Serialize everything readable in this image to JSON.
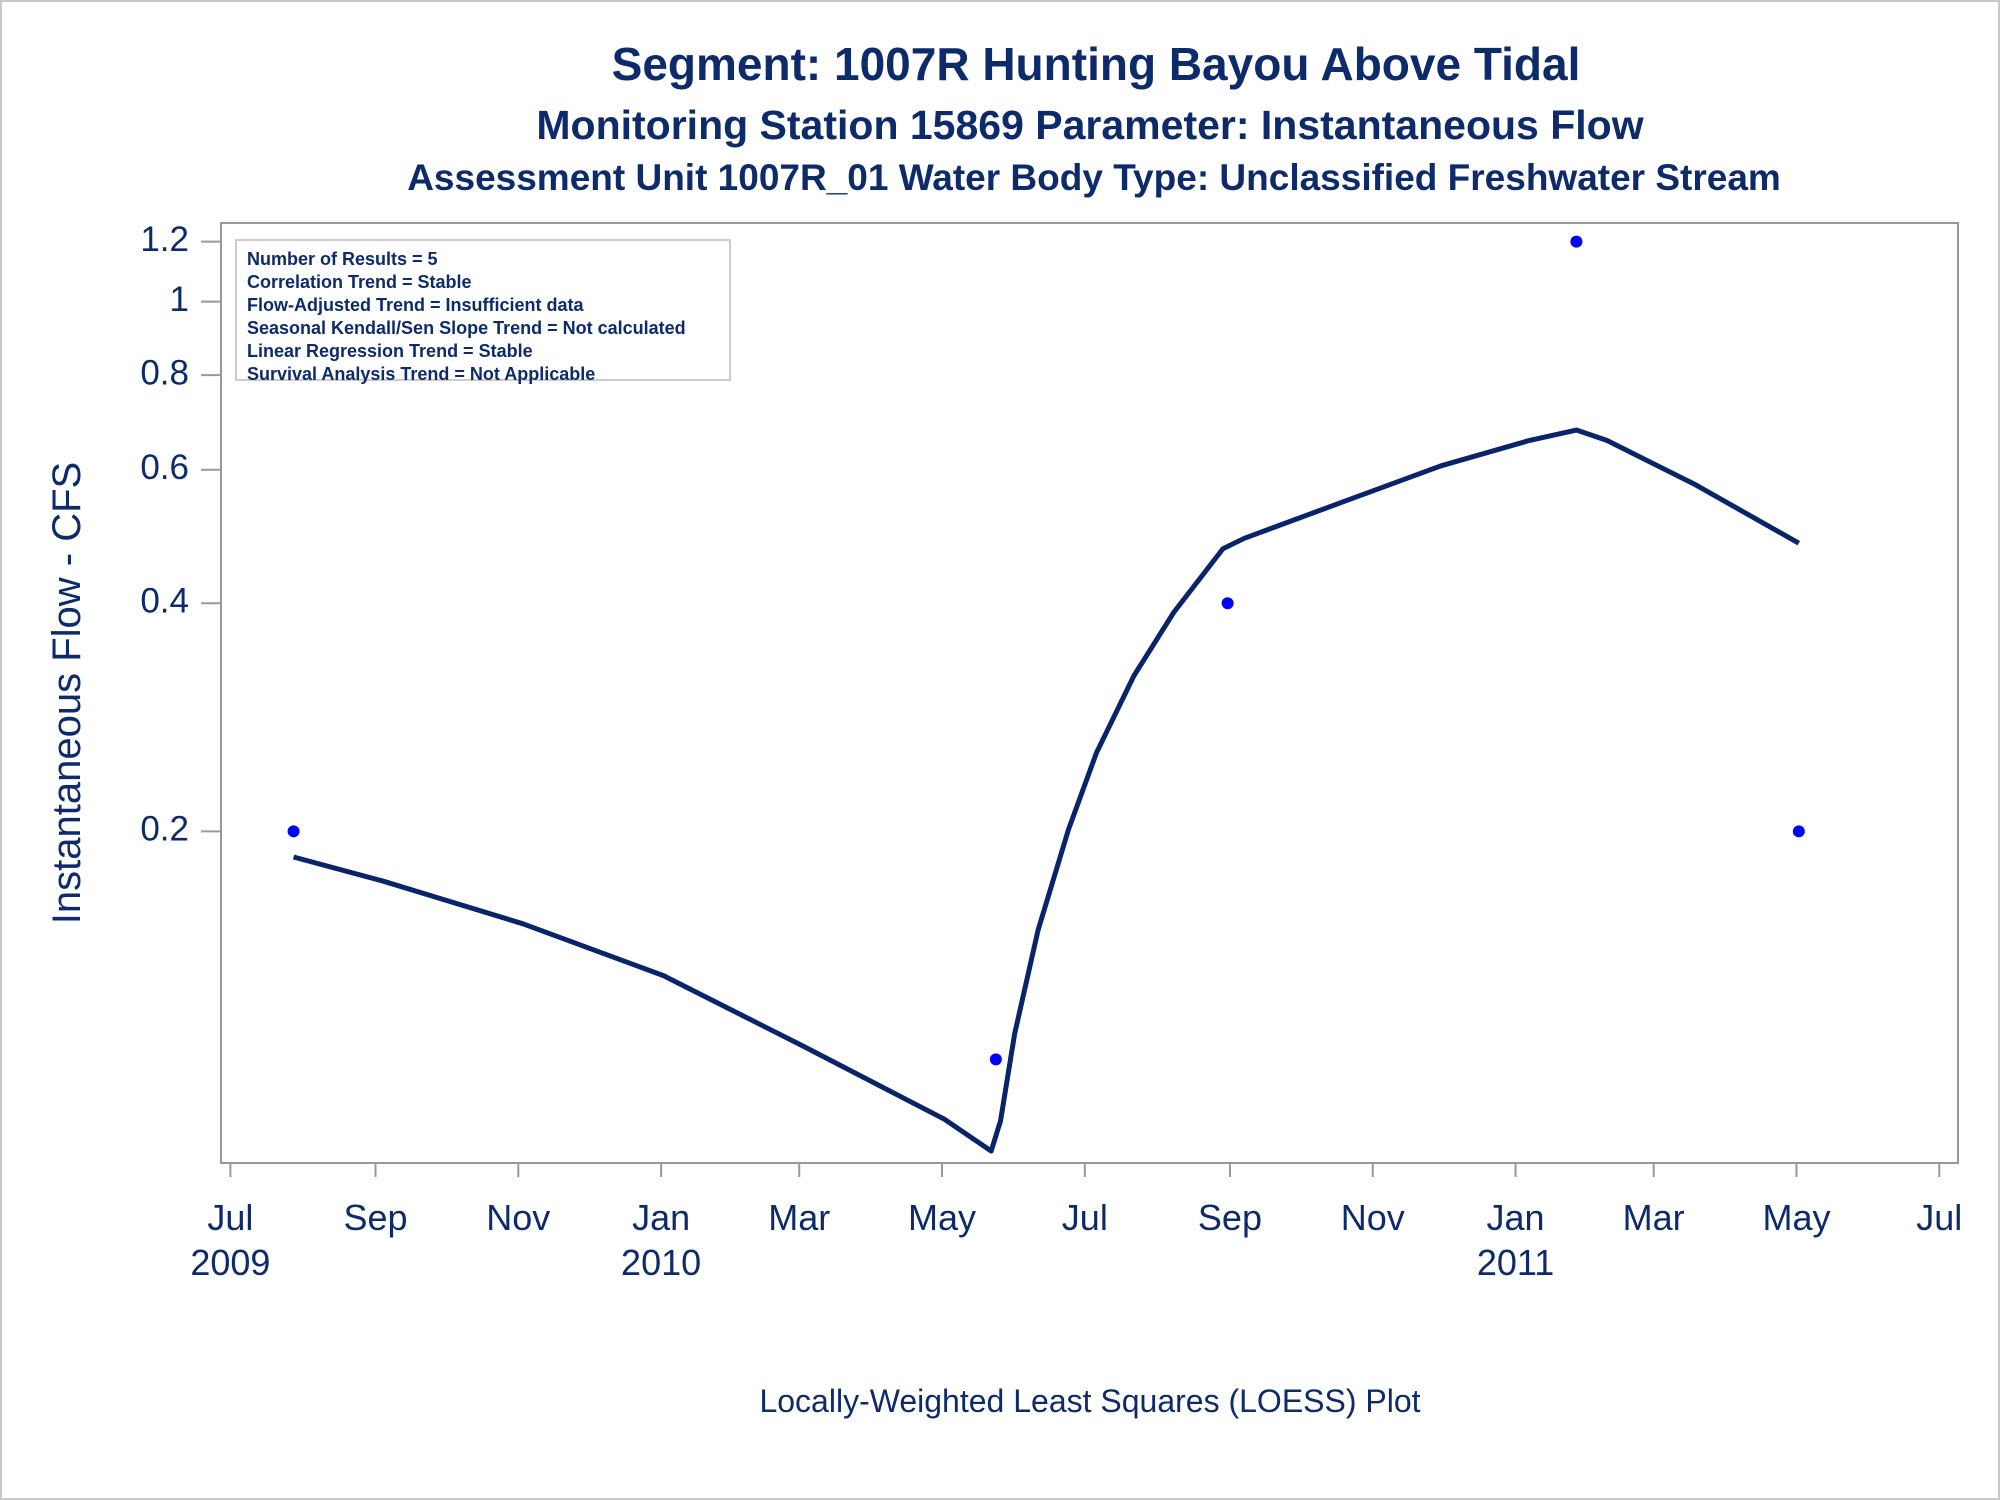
{
  "chart_data": {
    "type": "scatter",
    "title": "Segment: 1007R  Hunting Bayou Above Tidal",
    "subtitle": "Monitoring Station 15869 Parameter: Instantaneous Flow",
    "subtitle2": "Assessment Unit 1007R_01   Water Body Type: Unclassified Freshwater Stream",
    "ylabel": "Instantaneous Flow - CFS",
    "footnote": "Locally-Weighted Least Squares (LOESS) Plot",
    "annotations": [
      "Number of Results = 5",
      "Correlation Trend = Stable",
      "Flow-Adjusted Trend = Insufficient data",
      "Seasonal Kendall/Sen Slope Trend = Not calculated",
      "Linear Regression Trend = Stable",
      "Survival Analysis Trend = Not Applicable"
    ],
    "yscale": "log",
    "ylim": [
      0.073,
      1.27
    ],
    "yticks": [
      0.2,
      0.4,
      0.6,
      0.8,
      1,
      1.2
    ],
    "xlim": [
      "2009-06-27",
      "2011-07-09"
    ],
    "xticks": [
      {
        "value": "2009-07-01",
        "label": "Jul"
      },
      {
        "value": "2009-09-01",
        "label": "Sep"
      },
      {
        "value": "2009-11-01",
        "label": "Nov"
      },
      {
        "value": "2010-01-01",
        "label": "Jan"
      },
      {
        "value": "2010-03-01",
        "label": "Mar"
      },
      {
        "value": "2010-05-01",
        "label": "May"
      },
      {
        "value": "2010-07-01",
        "label": "Jul"
      },
      {
        "value": "2010-09-01",
        "label": "Sep"
      },
      {
        "value": "2010-11-01",
        "label": "Nov"
      },
      {
        "value": "2011-01-01",
        "label": "Jan"
      },
      {
        "value": "2011-03-01",
        "label": "Mar"
      },
      {
        "value": "2011-05-01",
        "label": "May"
      },
      {
        "value": "2011-07-01",
        "label": "Jul"
      }
    ],
    "xtick_years": [
      {
        "value": "2009-07-01",
        "label": "2009"
      },
      {
        "value": "2010-01-01",
        "label": "2010"
      },
      {
        "value": "2011-01-01",
        "label": "2011"
      }
    ],
    "series": [
      {
        "type": "scatter",
        "color": "#0000ff",
        "x": [
          "2009-07-28",
          "2010-05-24",
          "2010-08-31",
          "2011-01-27",
          "2011-05-02"
        ],
        "values": [
          0.2,
          0.1,
          0.4,
          1.2,
          0.2
        ]
      },
      {
        "type": "line",
        "color": "#0a2469",
        "x": [
          "2009-07-28",
          "2009-09-04",
          "2009-11-03",
          "2010-01-02",
          "2010-03-03",
          "2010-05-02",
          "2010-05-22",
          "2010-05-26",
          "2010-06-01",
          "2010-06-11",
          "2010-06-24",
          "2010-07-06",
          "2010-07-22",
          "2010-08-08",
          "2010-08-29",
          "2010-09-07",
          "2010-10-17",
          "2010-11-30",
          "2011-01-07",
          "2011-01-27",
          "2011-02-09",
          "2011-03-19",
          "2011-05-02"
        ],
        "values": [
          0.185,
          0.172,
          0.151,
          0.129,
          0.104,
          0.0834,
          0.0757,
          0.083,
          0.108,
          0.148,
          0.201,
          0.254,
          0.321,
          0.389,
          0.472,
          0.487,
          0.541,
          0.607,
          0.656,
          0.677,
          0.656,
          0.573,
          0.48
        ]
      }
    ]
  }
}
